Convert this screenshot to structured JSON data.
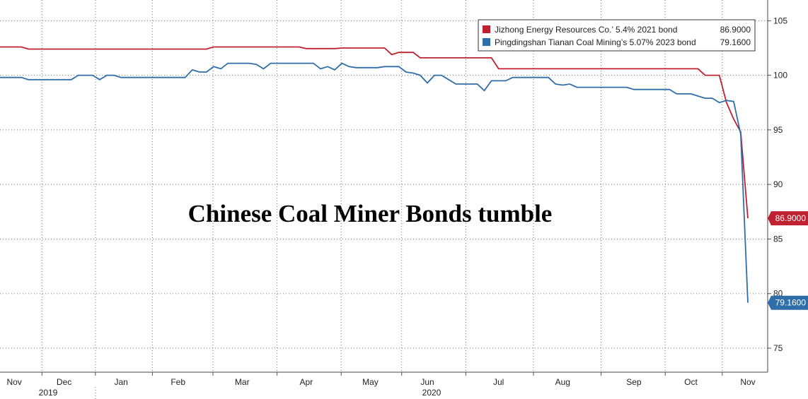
{
  "chart_data": {
    "type": "line",
    "annotation": "Chinese Coal Miner Bonds tumble",
    "categories": [
      null,
      null,
      "Nov",
      null,
      null,
      null,
      null,
      null,
      null,
      "Dec",
      null,
      null,
      null,
      null,
      null,
      null,
      null,
      "Jan",
      null,
      null,
      null,
      null,
      null,
      null,
      null,
      "Feb",
      null,
      null,
      null,
      null,
      null,
      null,
      null,
      null,
      "Mar",
      null,
      null,
      null,
      null,
      null,
      null,
      null,
      null,
      "Apr",
      null,
      null,
      null,
      null,
      null,
      null,
      null,
      null,
      "May",
      null,
      null,
      null,
      null,
      null,
      null,
      null,
      "Jun",
      null,
      null,
      null,
      null,
      null,
      null,
      null,
      null,
      null,
      "Jul",
      null,
      null,
      null,
      null,
      null,
      null,
      null,
      null,
      "Aug",
      null,
      null,
      null,
      null,
      null,
      null,
      null,
      null,
      null,
      "Sep",
      null,
      null,
      null,
      null,
      null,
      null,
      null,
      "Oct",
      null,
      null,
      null,
      null,
      null,
      null,
      null,
      "Nov"
    ],
    "year_labels": [
      "2019",
      "2020"
    ],
    "series": [
      {
        "name": "Jizhong Energy Resources Co.’ 5.4% 2021 bond",
        "color": "#c0202f",
        "last_label": "86.9000",
        "values": [
          102.6,
          102.6,
          102.6,
          102.6,
          102.4,
          102.4,
          102.4,
          102.4,
          102.4,
          102.4,
          102.4,
          102.4,
          102.4,
          102.4,
          102.4,
          102.4,
          102.4,
          102.4,
          102.4,
          102.4,
          102.4,
          102.4,
          102.4,
          102.4,
          102.4,
          102.4,
          102.4,
          102.4,
          102.4,
          102.4,
          102.6,
          102.6,
          102.6,
          102.6,
          102.6,
          102.6,
          102.6,
          102.6,
          102.6,
          102.6,
          102.6,
          102.6,
          102.6,
          102.45,
          102.45,
          102.45,
          102.45,
          102.45,
          102.5,
          102.5,
          102.5,
          102.5,
          102.5,
          102.5,
          102.5,
          101.9,
          102.1,
          102.1,
          102.1,
          101.6,
          101.6,
          101.6,
          101.6,
          101.6,
          101.6,
          101.6,
          101.6,
          101.6,
          101.6,
          101.6,
          100.6,
          100.6,
          100.6,
          100.6,
          100.6,
          100.6,
          100.6,
          100.6,
          100.6,
          100.6,
          100.6,
          100.6,
          100.6,
          100.6,
          100.6,
          100.6,
          100.6,
          100.6,
          100.6,
          100.6,
          100.6,
          100.6,
          100.6,
          100.6,
          100.6,
          100.6,
          100.6,
          100.6,
          100.6,
          100.0,
          100.0,
          100.0,
          97.5,
          96.0,
          94.8,
          86.9
        ]
      },
      {
        "name": "Pingdingshan Tianan Coal Mining’s 5.07% 2023 bond",
        "color": "#2f6ea8",
        "last_label": "79.1600",
        "values": [
          99.8,
          99.8,
          99.8,
          99.8,
          99.6,
          99.6,
          99.6,
          99.6,
          99.6,
          99.6,
          99.6,
          100.0,
          100.0,
          100.0,
          99.6,
          100.0,
          100.0,
          99.8,
          99.8,
          99.8,
          99.8,
          99.8,
          99.8,
          99.8,
          99.8,
          99.8,
          99.8,
          100.5,
          100.3,
          100.3,
          100.8,
          100.6,
          101.1,
          101.1,
          101.1,
          101.1,
          101.0,
          100.6,
          101.1,
          101.1,
          101.1,
          101.1,
          101.1,
          101.1,
          101.1,
          100.6,
          100.8,
          100.5,
          101.1,
          100.8,
          100.7,
          100.7,
          100.7,
          100.7,
          100.8,
          100.8,
          100.8,
          100.3,
          100.2,
          100.0,
          99.3,
          100.0,
          100.0,
          99.6,
          99.2,
          99.2,
          99.2,
          99.2,
          98.6,
          99.5,
          99.5,
          99.5,
          99.8,
          99.8,
          99.8,
          99.8,
          99.8,
          99.8,
          99.2,
          99.1,
          99.2,
          98.9,
          98.9,
          98.9,
          98.9,
          98.9,
          98.9,
          98.9,
          98.9,
          98.7,
          98.7,
          98.7,
          98.7,
          98.7,
          98.7,
          98.3,
          98.3,
          98.3,
          98.1,
          97.9,
          97.9,
          97.5,
          97.7,
          97.6,
          94.6,
          79.16
        ]
      }
    ],
    "ylim": [
      72.8,
      106.9
    ],
    "yticks": [
      75,
      80,
      85,
      90,
      95,
      100,
      105
    ],
    "grid": true
  }
}
